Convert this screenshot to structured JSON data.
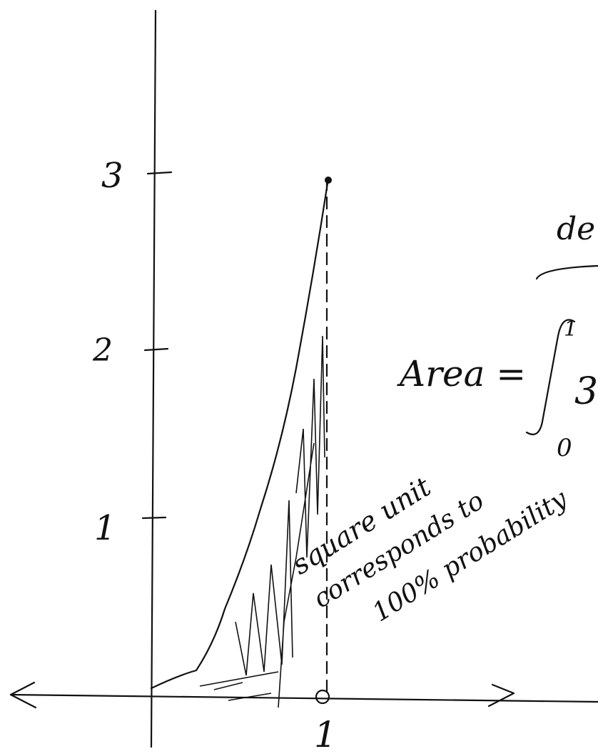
{
  "axes": {
    "y_tick_labels": [
      "3",
      "2",
      "1"
    ],
    "x_tick_labels": [
      "1"
    ]
  },
  "formula": {
    "note": "de",
    "lhs": "Area =",
    "upper": "1",
    "lower": "0",
    "integrand": "3"
  },
  "annotation": {
    "lines": [
      "square unit",
      "corresponds to",
      "100% probability"
    ]
  }
}
